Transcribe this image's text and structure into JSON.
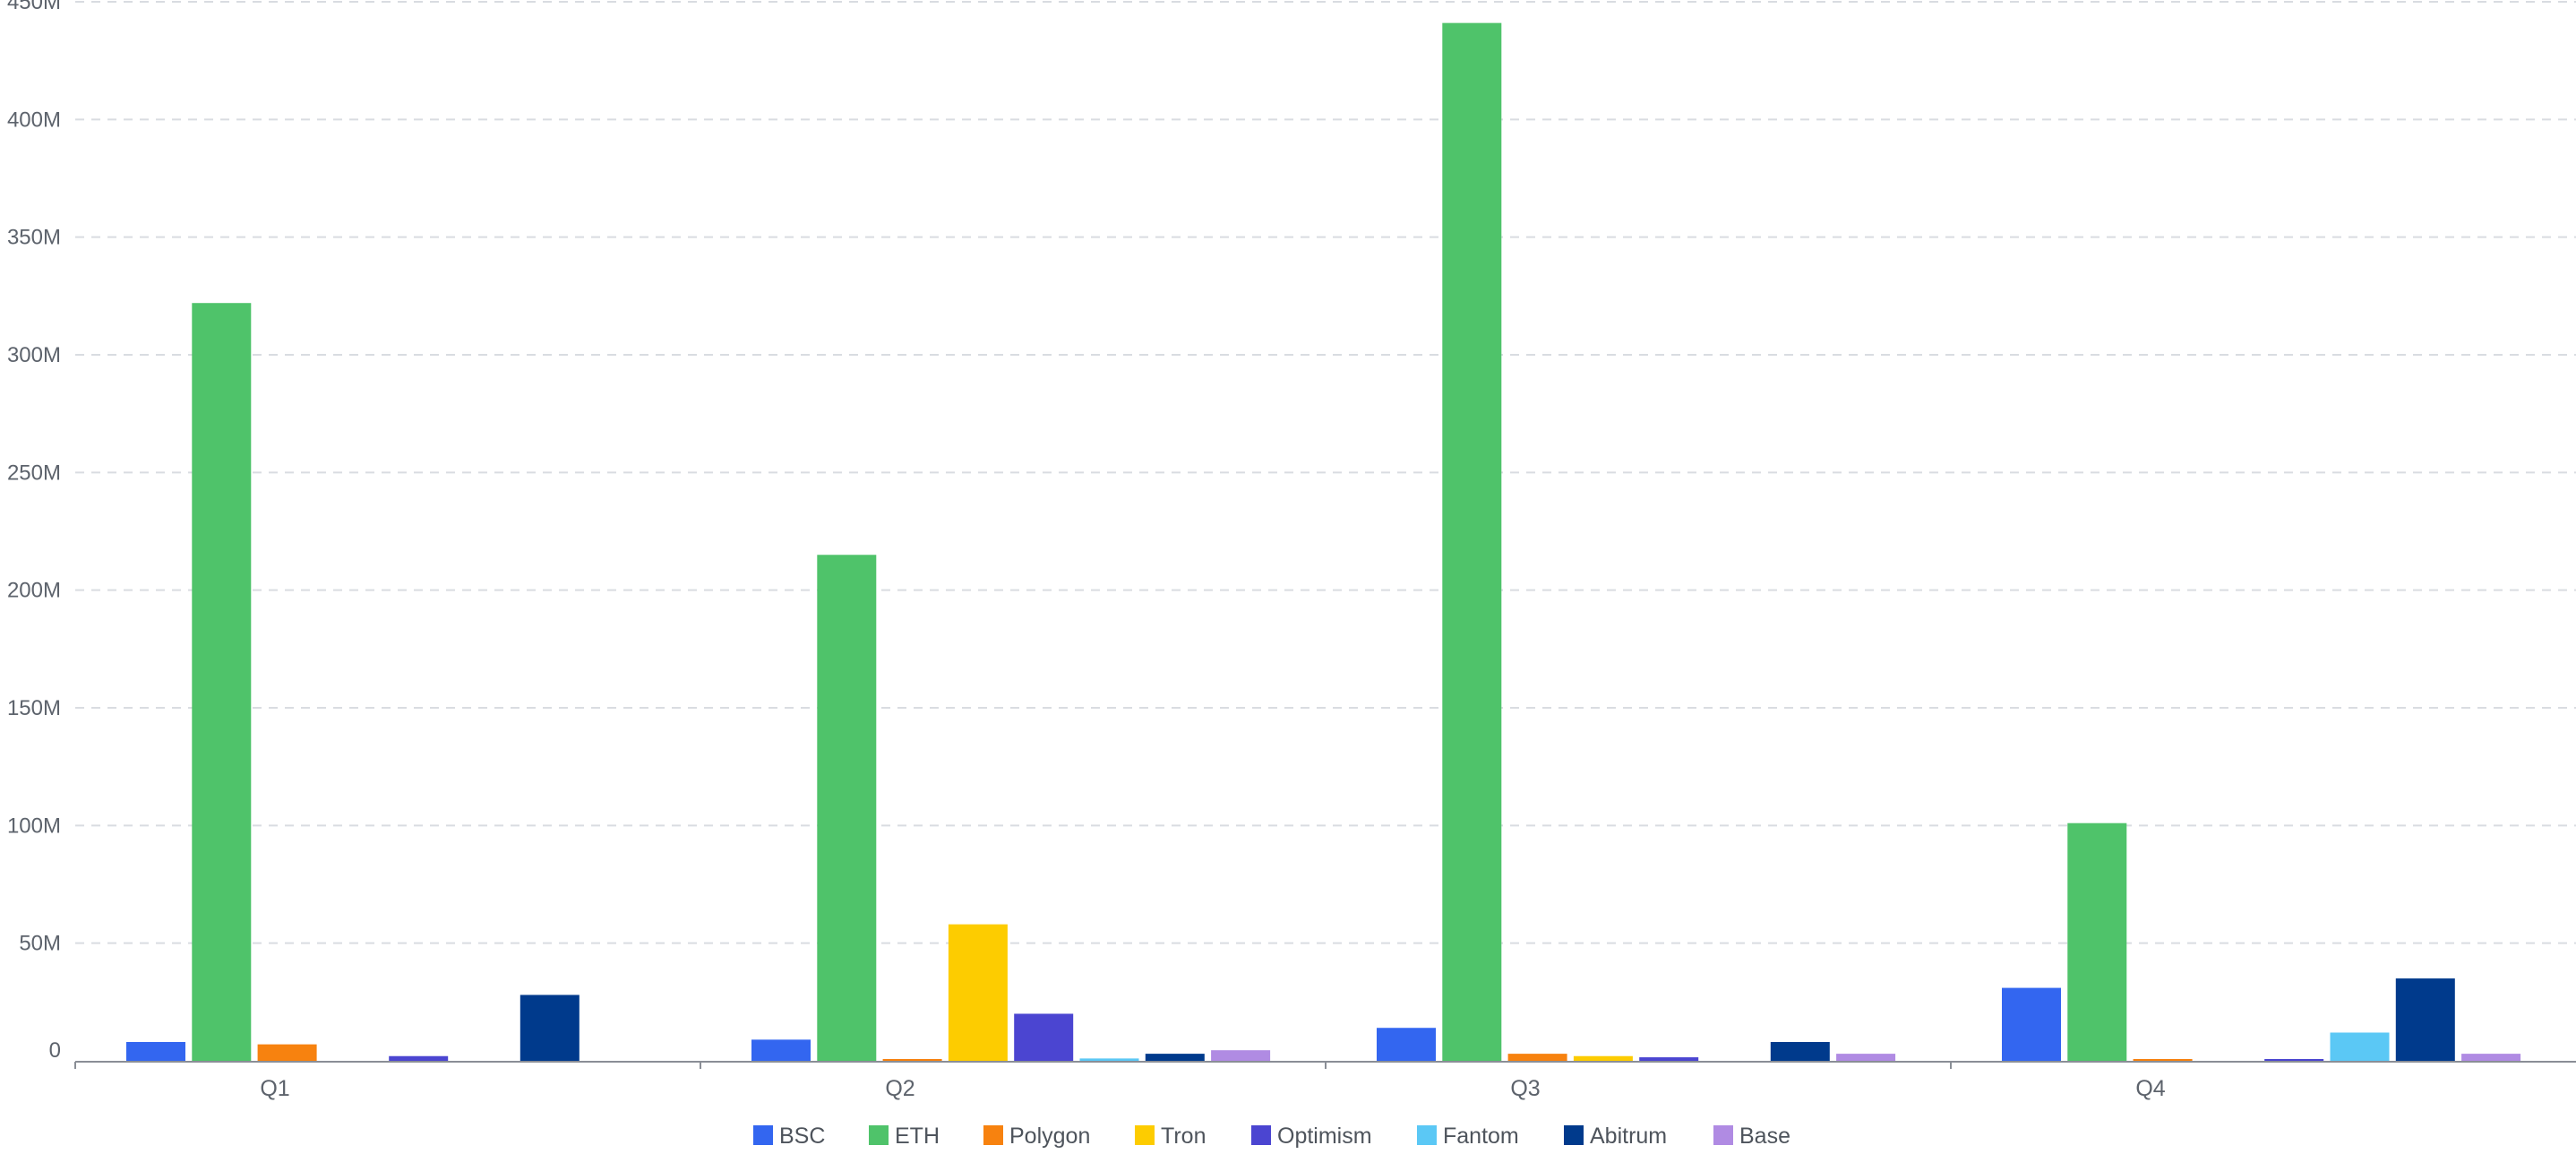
{
  "chart_data": {
    "type": "bar",
    "categories": [
      "Q1",
      "Q2",
      "Q3",
      "Q4"
    ],
    "y_ticks": [
      "0",
      "50M",
      "100M",
      "150M",
      "200M",
      "250M",
      "300M",
      "350M",
      "400M",
      "450M"
    ],
    "ylim": [
      0,
      450000000
    ],
    "grid": true,
    "legend_position": "bottom",
    "series": [
      {
        "name": "BSC",
        "color": "#3366f0",
        "values": [
          8000000,
          9000000,
          14000000,
          31000000
        ]
      },
      {
        "name": "ETH",
        "color": "#4fc36a",
        "values": [
          322000000,
          215000000,
          441000000,
          101000000
        ]
      },
      {
        "name": "Polygon",
        "color": "#f7820f",
        "values": [
          7000000,
          500000,
          3000000,
          500000
        ]
      },
      {
        "name": "Tron",
        "color": "#fdcc00",
        "values": [
          0,
          58000000,
          2000000,
          0
        ]
      },
      {
        "name": "Optimism",
        "color": "#4b45d1",
        "values": [
          2000000,
          20000000,
          1500000,
          500000
        ]
      },
      {
        "name": "Fantom",
        "color": "#5bc8f5",
        "values": [
          0,
          1000000,
          0,
          12000000
        ]
      },
      {
        "name": "Abitrum",
        "color": "#003a8c",
        "values": [
          28000000,
          3000000,
          8000000,
          35000000
        ]
      },
      {
        "name": "Base",
        "color": "#b08be3",
        "values": [
          0,
          4500000,
          3000000,
          3000000
        ]
      }
    ]
  }
}
